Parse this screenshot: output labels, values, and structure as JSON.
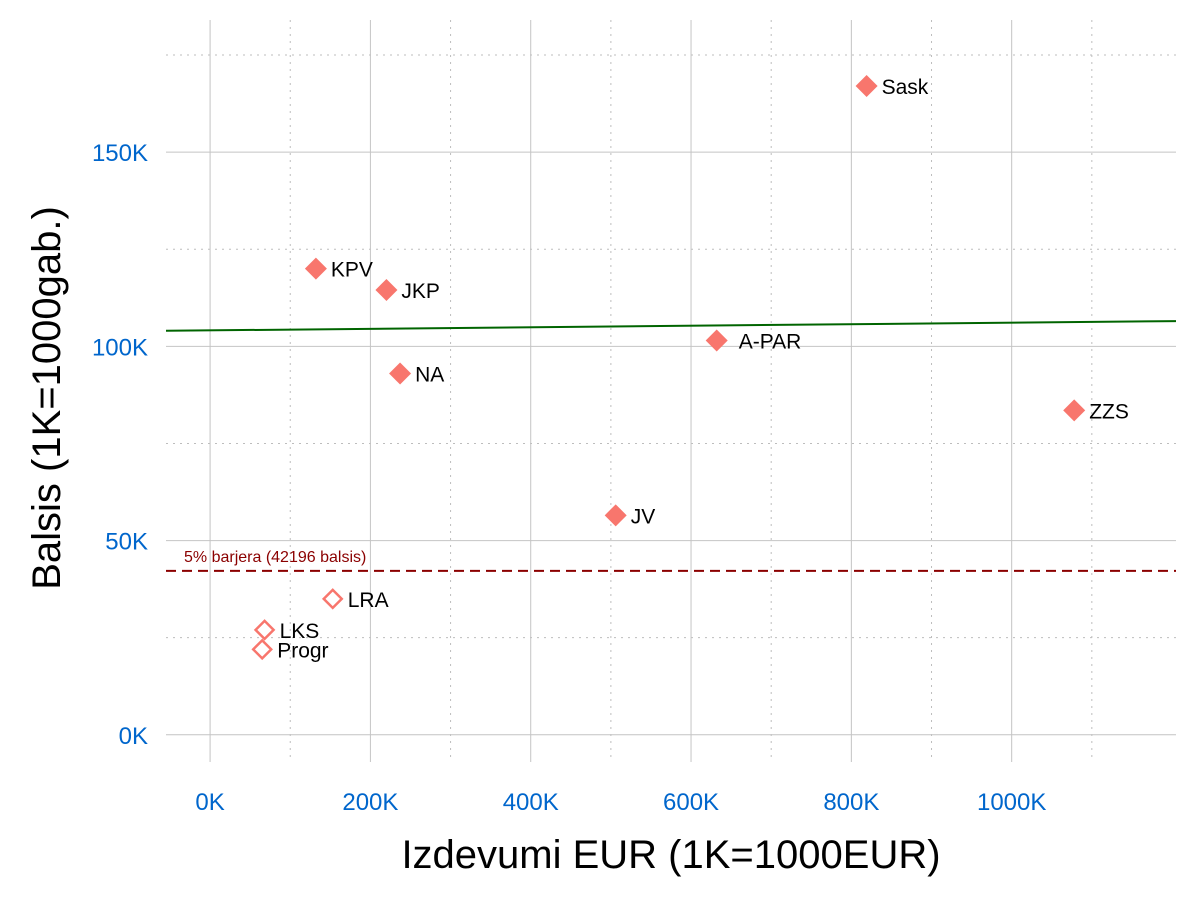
{
  "chart_data": {
    "type": "scatter",
    "xlabel": "Izdevumi EUR (1K=1000EUR)",
    "ylabel": "Balsis (1K=1000gab.)",
    "xlim": [
      -55000,
      1205000
    ],
    "ylim": [
      -7000,
      184000
    ],
    "x_ticks": [
      0,
      200000,
      400000,
      600000,
      800000,
      1000000
    ],
    "x_tick_labels": [
      "0K",
      "200K",
      "400K",
      "600K",
      "800K",
      "1000K"
    ],
    "y_ticks": [
      0,
      50000,
      100000,
      150000
    ],
    "y_tick_labels": [
      "0K",
      "50K",
      "100K",
      "150K"
    ],
    "grid": true,
    "tick_color": "#0066cc",
    "points": [
      {
        "label": "Sask",
        "x": 819000,
        "y": 167000,
        "filled": true
      },
      {
        "label": "KPV",
        "x": 132000,
        "y": 120000,
        "filled": true
      },
      {
        "label": "JKP",
        "x": 220000,
        "y": 114500,
        "filled": true
      },
      {
        "label": "A-PAR",
        "x": 632000,
        "y": 101500,
        "filled": true
      },
      {
        "label": "NA",
        "x": 237000,
        "y": 93000,
        "filled": true
      },
      {
        "label": "ZZS",
        "x": 1078000,
        "y": 83500,
        "filled": true
      },
      {
        "label": "JV",
        "x": 506000,
        "y": 56500,
        "filled": true
      },
      {
        "label": "LRA",
        "x": 153000,
        "y": 35000,
        "filled": false
      },
      {
        "label": "LKS",
        "x": 68000,
        "y": 27000,
        "filled": false
      },
      {
        "label": "Progr",
        "x": 65000,
        "y": 22000,
        "filled": false
      }
    ],
    "point_color": "#f8766d",
    "trend_line": {
      "x": [
        -55000,
        1205000
      ],
      "y": [
        104000,
        106500
      ],
      "color": "#006400"
    },
    "threshold_line": {
      "y": 42196,
      "label": "5% barjera (42196 balsis)",
      "color": "#8b0000"
    }
  }
}
